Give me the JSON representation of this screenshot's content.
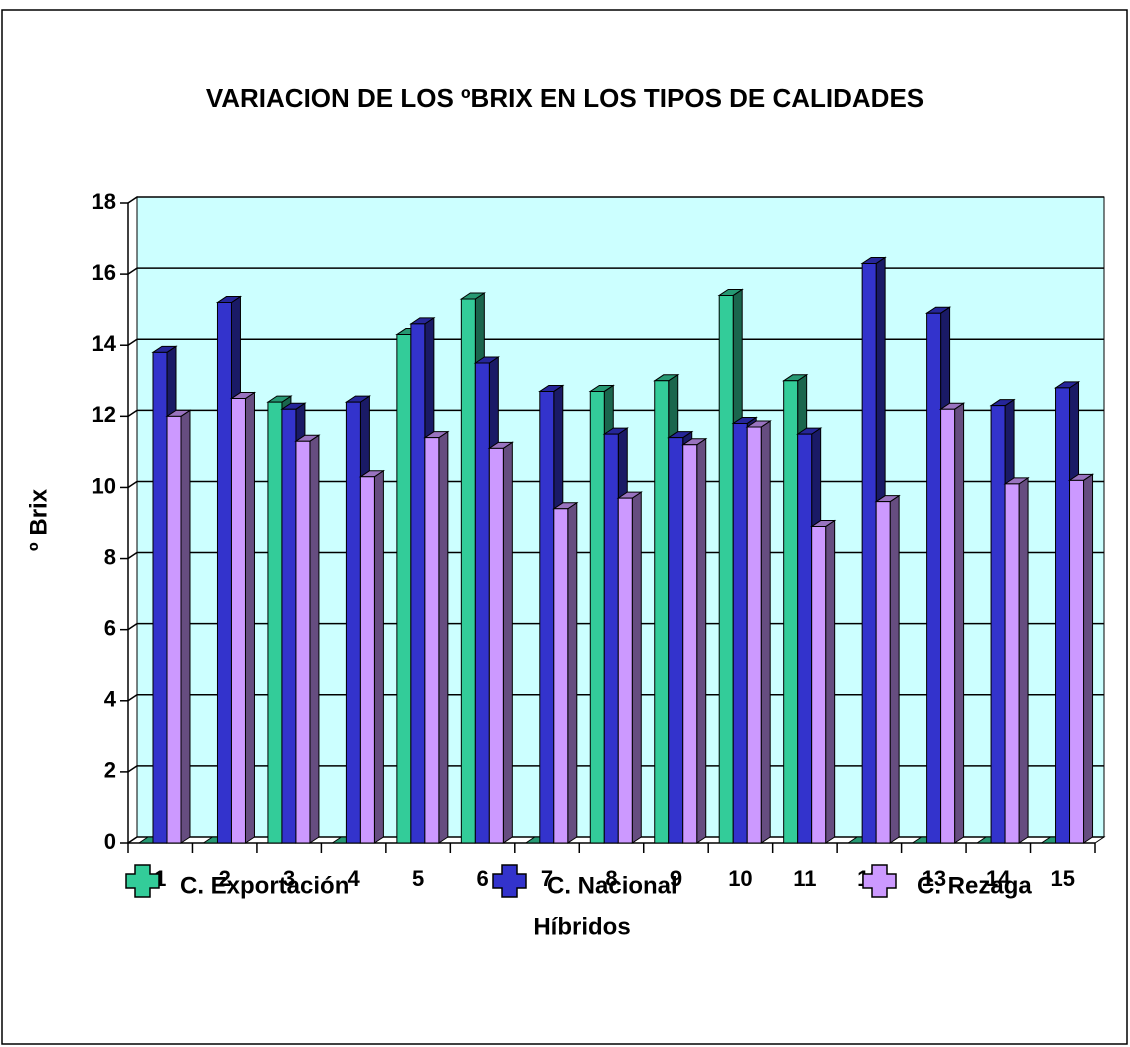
{
  "chart_data": {
    "type": "bar3d",
    "title": "VARIACION DE LOS ºBRIX EN LOS TIPOS DE CALIDADES",
    "x_label": "Híbridos",
    "y_label": "º Brix",
    "categories": [
      "1",
      "2",
      "3",
      "4",
      "5",
      "6",
      "7",
      "8",
      "9",
      "10",
      "11",
      "12",
      "13",
      "14",
      "15"
    ],
    "series": [
      {
        "name": "C. Exportación",
        "color": "#33cc99",
        "values": [
          0,
          0,
          12.4,
          0,
          14.3,
          15.3,
          0,
          12.7,
          13.0,
          15.4,
          13.0,
          0,
          0,
          0,
          0
        ]
      },
      {
        "name": "C. Nacional",
        "color": "#3333cc",
        "values": [
          13.8,
          15.2,
          12.2,
          12.4,
          14.6,
          13.5,
          12.7,
          11.5,
          11.4,
          11.8,
          11.5,
          16.3,
          14.9,
          12.3,
          12.8
        ]
      },
      {
        "name": "C. Rezaga",
        "color": "#cc99ff",
        "values": [
          12.0,
          12.5,
          11.3,
          10.3,
          11.4,
          11.1,
          9.4,
          9.7,
          11.2,
          11.7,
          8.9,
          9.6,
          12.2,
          10.1,
          10.2
        ]
      }
    ],
    "ylim": [
      0,
      18
    ],
    "yticks": [
      0,
      2,
      4,
      6,
      8,
      10,
      12,
      14,
      16,
      18
    ],
    "grid": true,
    "wall_color": "#ccffff",
    "legend": "bottom"
  }
}
